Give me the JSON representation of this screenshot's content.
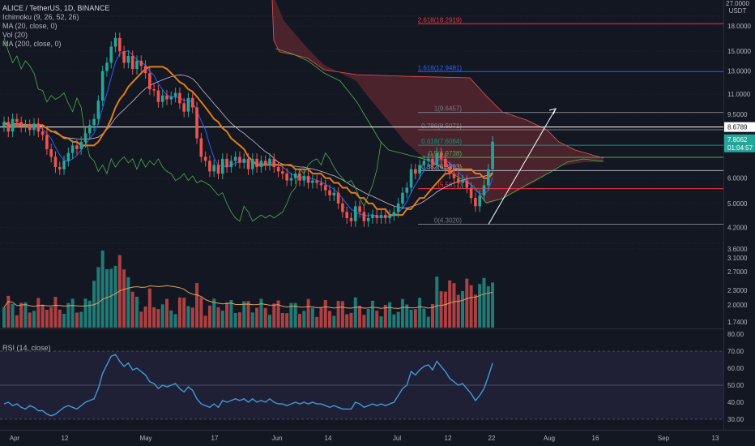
{
  "header": {
    "title": "ALICE / TetherUS, 1D, BINANCE",
    "indicators": [
      "Ichimoku (9, 26, 52, 26)",
      "MA (20, close, 0)",
      "Vol (20)",
      "MA (200, close, 0)"
    ],
    "rsi_title": "RSI (14, close)"
  },
  "price_axis": {
    "unit_top": "27.0000",
    "unit_bottom": "USDT",
    "ticks": [
      "18.0000",
      "15.0000",
      "13.0000",
      "11.0000",
      "9.5000",
      "7.8062",
      "6.0000",
      "5.0000",
      "4.2000",
      "3.6000",
      "3.1000",
      "2.7000",
      "2.3000",
      "2.0000",
      "1.7400"
    ],
    "last_price": "7.8062",
    "countdown": "01:04:57",
    "crosshair_price": "8.6789"
  },
  "rsi_axis": {
    "ticks": [
      "80.00",
      "70.00",
      "60.00",
      "50.00",
      "40.00",
      "30.00"
    ]
  },
  "time_axis": {
    "labels": [
      "Apr",
      "12",
      "May",
      "17",
      "Jun",
      "14",
      "Jul",
      "12",
      "22",
      "Aug",
      "16",
      "Sep",
      "13"
    ]
  },
  "fib_levels": [
    {
      "label": "2.618(18.2919)",
      "price": 18.2919,
      "color": "#f23645"
    },
    {
      "label": "1.618(12.9481)",
      "price": 12.9481,
      "color": "#2962ff"
    },
    {
      "label": "1(9.6457)",
      "price": 9.6457,
      "color": "#787b86"
    },
    {
      "label": "0.786(8.5071)",
      "price": 8.5071,
      "color": "#787b86"
    },
    {
      "label": "0.618(7.6084)",
      "price": 7.6084,
      "color": "#089981"
    },
    {
      "label": "0.5(6.9738)",
      "price": 6.9738,
      "color": "#4caf50"
    },
    {
      "label": "0.382(6.3393)",
      "price": 6.3393,
      "color": "#b2b5be"
    },
    {
      "label": "(5.5617)",
      "price": 5.5617,
      "color": "#f23645"
    },
    {
      "label": "0(4.3020)",
      "price": 4.302,
      "color": "#787b86"
    }
  ],
  "colors": {
    "up": "#26a69a",
    "down": "#ef5350",
    "kijun": "#e07c1a",
    "ma20": "#2962ff",
    "ma200": "#c9b8d8",
    "cloud": "#7a2e35",
    "lagging": "#4caf50",
    "rsi": "#3f9bd6",
    "vol_ma": "#e0a060"
  },
  "chart_data": {
    "type": "candlestick",
    "title": "ALICE / TetherUS, 1D, BINANCE",
    "ylim_price": [
      3.1,
      27
    ],
    "ylim_volume_axis": [
      1.74,
      3.1
    ],
    "ylim_rsi": [
      25,
      80
    ],
    "close_start_to_end": [
      9.0,
      8.4,
      9.2,
      9.0,
      8.7,
      8.8,
      8.5,
      8.9,
      8.4,
      8.2,
      7.4,
      7.0,
      6.5,
      6.4,
      6.8,
      7.2,
      7.6,
      7.4,
      7.8,
      8.3,
      8.8,
      9.2,
      10.5,
      13.0,
      13.8,
      15.5,
      16.5,
      15.0,
      13.8,
      14.5,
      13.2,
      14.0,
      13.5,
      12.8,
      11.4,
      11.3,
      10.4,
      10.9,
      10.6,
      10.8,
      11.1,
      10.3,
      9.7,
      10.7,
      10.0,
      8.0,
      7.0,
      6.8,
      6.3,
      6.6,
      6.2,
      6.9,
      6.5,
      6.8,
      7.0,
      6.7,
      6.9,
      6.4,
      6.9,
      6.5,
      6.8,
      6.6,
      6.9,
      6.5,
      6.3,
      6.2,
      5.9,
      6.0,
      6.2,
      5.9,
      6.1,
      5.8,
      5.9,
      5.8,
      5.7,
      5.5,
      5.3,
      5.4,
      5.0,
      4.7,
      4.5,
      4.4,
      4.9,
      4.7,
      4.4,
      4.5,
      4.6,
      4.5,
      4.6,
      4.5,
      4.6,
      4.7,
      5.0,
      5.4,
      5.6,
      6.4,
      6.2,
      6.6,
      6.8,
      6.9,
      6.6,
      7.2,
      6.9,
      6.5,
      6.2,
      6.0,
      5.8,
      5.9,
      5.6,
      5.2,
      4.9,
      5.3,
      5.7,
      6.4,
      7.81
    ],
    "last_close": 7.8062,
    "rsi_14": [
      39,
      40,
      38,
      39,
      37,
      36,
      38,
      37,
      35,
      35,
      33,
      32,
      33,
      35,
      37,
      38,
      37,
      36,
      38,
      40,
      41,
      42,
      48,
      57,
      62,
      67,
      68,
      64,
      61,
      63,
      59,
      60,
      58,
      56,
      52,
      51,
      48,
      50,
      49,
      50,
      51,
      48,
      46,
      49,
      47,
      42,
      39,
      38,
      37,
      39,
      37,
      41,
      40,
      41,
      42,
      41,
      42,
      40,
      42,
      40,
      41,
      40,
      42,
      40,
      39,
      39,
      38,
      39,
      40,
      39,
      40,
      39,
      40,
      39,
      39,
      38,
      37,
      38,
      37,
      36,
      36,
      36,
      40,
      39,
      37,
      38,
      39,
      38,
      39,
      38,
      39,
      40,
      44,
      48,
      50,
      58,
      56,
      59,
      61,
      62,
      59,
      64,
      61,
      58,
      54,
      52,
      50,
      51,
      48,
      45,
      41,
      44,
      48,
      55,
      63
    ],
    "volume_axis_ticks": [
      "3.1000",
      "2.7000",
      "2.3000",
      "2.0000",
      "1.7400"
    ]
  }
}
